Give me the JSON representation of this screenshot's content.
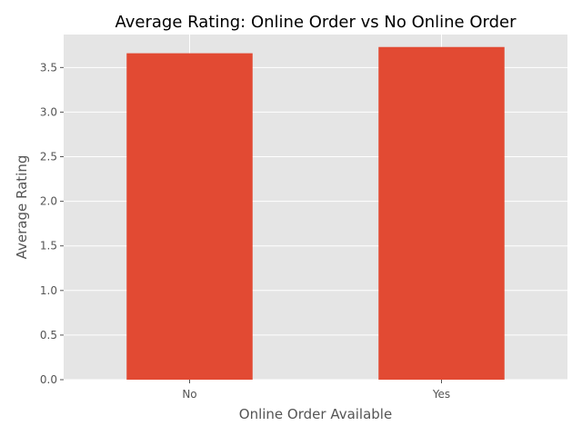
{
  "chart_data": {
    "type": "bar",
    "title": "Average Rating: Online Order vs No Online Order",
    "xlabel": "Online Order Available",
    "ylabel": "Average Rating",
    "categories": [
      "No",
      "Yes"
    ],
    "values": [
      3.66,
      3.73
    ],
    "ylim": [
      0,
      3.87
    ],
    "yticks": [
      0.0,
      0.5,
      1.0,
      1.5,
      2.0,
      2.5,
      3.0,
      3.5
    ],
    "ytick_labels": [
      "0.0",
      "0.5",
      "1.0",
      "1.5",
      "2.0",
      "2.5",
      "3.0",
      "3.5"
    ],
    "grid": true,
    "style": "ggplot",
    "bar_color": "#E24A33",
    "background_color": "#E5E5E5",
    "grid_color": "#FFFFFF"
  }
}
